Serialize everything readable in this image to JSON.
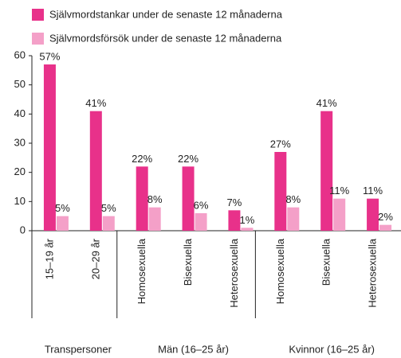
{
  "chart_data": {
    "type": "bar",
    "groups": [
      {
        "name": "Transpersoner",
        "categories": [
          "15–19 år",
          "20–29 år"
        ]
      },
      {
        "name": "Män (16–25 år)",
        "categories": [
          "Homosexuella",
          "Bisexuella",
          "Heterosexuella"
        ]
      },
      {
        "name": "Kvinnor (16–25 år)",
        "categories": [
          "Homosexuella",
          "Bisexuella",
          "Heterosexuella"
        ]
      }
    ],
    "series": [
      {
        "name": "Självmordstankar under de senaste 12 månaderna",
        "color": "#e8318a",
        "values": [
          57,
          41,
          22,
          22,
          7,
          27,
          41,
          11
        ],
        "value_labels": [
          "57%",
          "41%",
          "22%",
          "22%",
          "7%",
          "27%",
          "41%",
          "11%"
        ]
      },
      {
        "name": "Självmordsförsök under de senaste 12 månaderna",
        "color": "#f4a0c8",
        "values": [
          5,
          5,
          8,
          6,
          1,
          8,
          11,
          2
        ],
        "value_labels": [
          "5%",
          "5%",
          "8%",
          "6%",
          "1%",
          "8%",
          "11%",
          "2%"
        ]
      }
    ],
    "ylim": [
      0,
      60
    ],
    "yticks": [
      0,
      10,
      20,
      30,
      40,
      50,
      60
    ],
    "grid": false,
    "legend": "top"
  }
}
